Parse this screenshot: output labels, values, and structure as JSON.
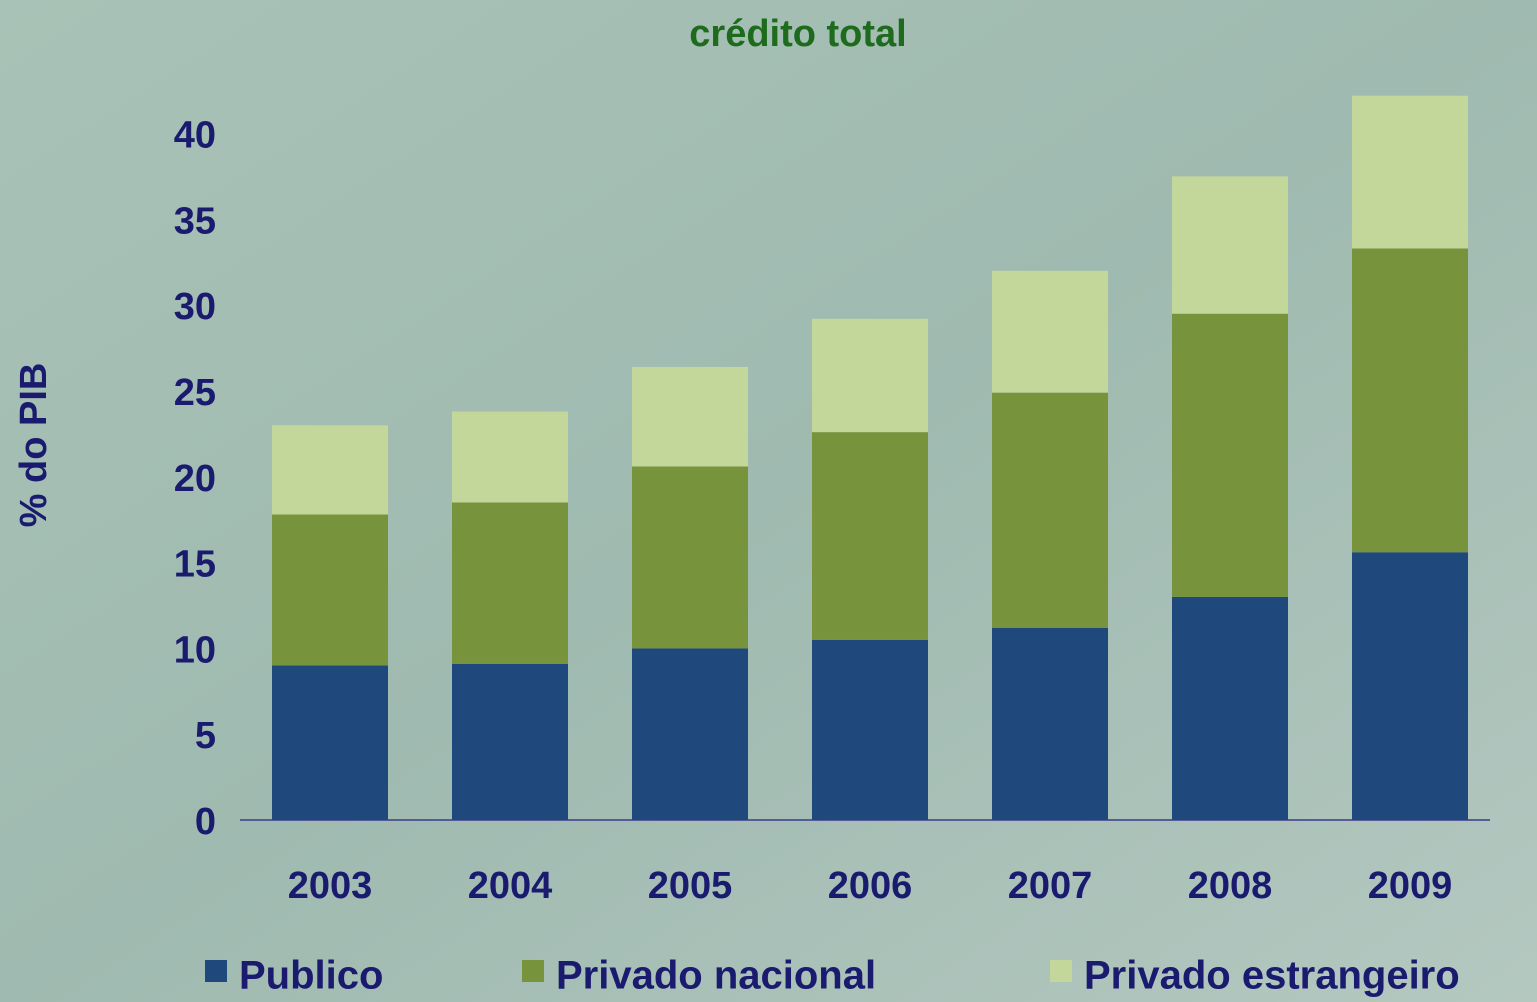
{
  "chart_data": {
    "type": "stacked_bar",
    "title": "crédito total",
    "y_label": "% do PIB",
    "categories": [
      "2003",
      "2004",
      "2005",
      "2006",
      "2007",
      "2008",
      "2009"
    ],
    "series": [
      {
        "name": "Publico",
        "color": "#1f497d",
        "values": [
          9.0,
          9.1,
          10.0,
          10.5,
          11.2,
          13.0,
          15.6
        ]
      },
      {
        "name": "Privado nacional",
        "color": "#77933c",
        "values": [
          8.8,
          9.4,
          10.6,
          12.1,
          13.7,
          16.5,
          17.7
        ]
      },
      {
        "name": "Privado estrangeiro",
        "color": "#c4d79b",
        "values": [
          5.2,
          5.3,
          5.8,
          6.6,
          7.1,
          8.0,
          8.9
        ]
      }
    ],
    "ylim": [
      0,
      43
    ],
    "yticks": [
      0,
      5,
      10,
      15,
      20,
      25,
      30,
      35,
      40
    ],
    "legend": "bottom"
  }
}
